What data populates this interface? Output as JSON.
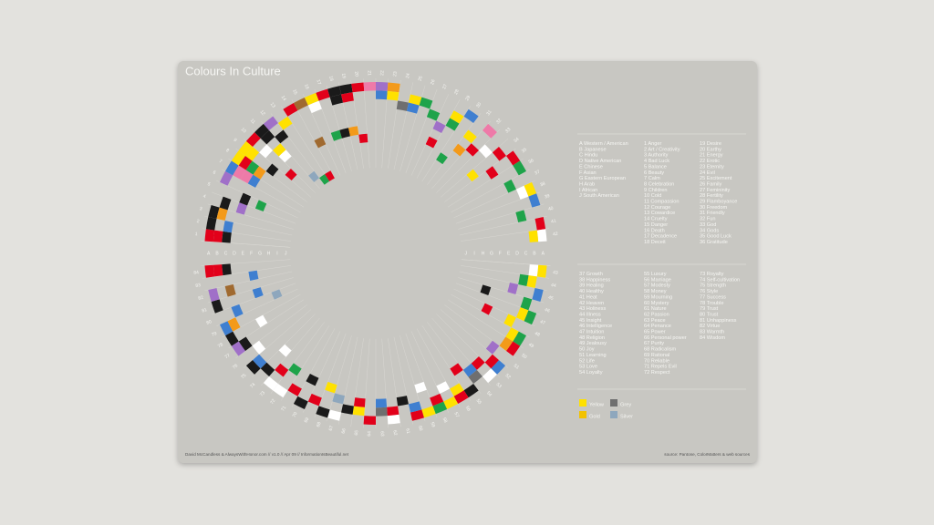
{
  "title": "Colours In Culture",
  "cultures": [
    {
      "letter": "A",
      "name": "Western / American"
    },
    {
      "letter": "B",
      "name": "Japanese"
    },
    {
      "letter": "C",
      "name": "Hindu"
    },
    {
      "letter": "D",
      "name": "Native American"
    },
    {
      "letter": "E",
      "name": "Chinese"
    },
    {
      "letter": "F",
      "name": "Asian"
    },
    {
      "letter": "G",
      "name": "Eastern European"
    },
    {
      "letter": "H",
      "name": "Arab"
    },
    {
      "letter": "I",
      "name": "African"
    },
    {
      "letter": "J",
      "name": "South American"
    }
  ],
  "meanings": [
    {
      "number": 1,
      "label": "Anger"
    },
    {
      "number": 2,
      "label": "Art / Creativity"
    },
    {
      "number": 3,
      "label": "Authority"
    },
    {
      "number": 4,
      "label": "Bad Luck"
    },
    {
      "number": 5,
      "label": "Balance"
    },
    {
      "number": 6,
      "label": "Beauty"
    },
    {
      "number": 7,
      "label": "Calm"
    },
    {
      "number": 8,
      "label": "Celebration"
    },
    {
      "number": 9,
      "label": "Children"
    },
    {
      "number": 10,
      "label": "Cold"
    },
    {
      "number": 11,
      "label": "Compassion"
    },
    {
      "number": 12,
      "label": "Courage"
    },
    {
      "number": 13,
      "label": "Cowardice"
    },
    {
      "number": 14,
      "label": "Cruelty"
    },
    {
      "number": 15,
      "label": "Danger"
    },
    {
      "number": 16,
      "label": "Death"
    },
    {
      "number": 17,
      "label": "Decadence"
    },
    {
      "number": 18,
      "label": "Deceit"
    },
    {
      "number": 19,
      "label": "Desire"
    },
    {
      "number": 20,
      "label": "Earthy"
    },
    {
      "number": 21,
      "label": "Energy"
    },
    {
      "number": 22,
      "label": "Erotic"
    },
    {
      "number": 23,
      "label": "Eternity"
    },
    {
      "number": 24,
      "label": "Evil"
    },
    {
      "number": 25,
      "label": "Excitement"
    },
    {
      "number": 26,
      "label": "Family"
    },
    {
      "number": 27,
      "label": "Femininity"
    },
    {
      "number": 28,
      "label": "Fertility"
    },
    {
      "number": 29,
      "label": "Flamboyance"
    },
    {
      "number": 30,
      "label": "Freedom"
    },
    {
      "number": 31,
      "label": "Friendly"
    },
    {
      "number": 32,
      "label": "Fun"
    },
    {
      "number": 33,
      "label": "God"
    },
    {
      "number": 34,
      "label": "Gods"
    },
    {
      "number": 35,
      "label": "Good Luck"
    },
    {
      "number": 36,
      "label": "Gratitude"
    },
    {
      "number": 37,
      "label": "Growth"
    },
    {
      "number": 38,
      "label": "Happiness"
    },
    {
      "number": 39,
      "label": "Healing"
    },
    {
      "number": 40,
      "label": "Healthy"
    },
    {
      "number": 41,
      "label": "Heat"
    },
    {
      "number": 42,
      "label": "Heaven"
    },
    {
      "number": 43,
      "label": "Holiness"
    },
    {
      "number": 44,
      "label": "Illness"
    },
    {
      "number": 45,
      "label": "Insight"
    },
    {
      "number": 46,
      "label": "Intelligence"
    },
    {
      "number": 47,
      "label": "Intuition"
    },
    {
      "number": 48,
      "label": "Religion"
    },
    {
      "number": 49,
      "label": "Jealousy"
    },
    {
      "number": 50,
      "label": "Joy"
    },
    {
      "number": 51,
      "label": "Learning"
    },
    {
      "number": 52,
      "label": "Life"
    },
    {
      "number": 53,
      "label": "Love"
    },
    {
      "number": 54,
      "label": "Loyalty"
    },
    {
      "number": 55,
      "label": "Luxury"
    },
    {
      "number": 56,
      "label": "Marriage"
    },
    {
      "number": 57,
      "label": "Modesty"
    },
    {
      "number": 58,
      "label": "Money"
    },
    {
      "number": 59,
      "label": "Mourning"
    },
    {
      "number": 60,
      "label": "Mystery"
    },
    {
      "number": 61,
      "label": "Nature"
    },
    {
      "number": 62,
      "label": "Passion"
    },
    {
      "number": 63,
      "label": "Peace"
    },
    {
      "number": 64,
      "label": "Penance"
    },
    {
      "number": 65,
      "label": "Power"
    },
    {
      "number": 66,
      "label": "Personal power"
    },
    {
      "number": 67,
      "label": "Purity"
    },
    {
      "number": 68,
      "label": "Radicalism"
    },
    {
      "number": 69,
      "label": "Rational"
    },
    {
      "number": 70,
      "label": "Reliable"
    },
    {
      "number": 71,
      "label": "Repels Evil"
    },
    {
      "number": 72,
      "label": "Respect"
    },
    {
      "number": 73,
      "label": "Royalty"
    },
    {
      "number": 74,
      "label": "Self-cultivation"
    },
    {
      "number": 75,
      "label": "Strength"
    },
    {
      "number": 76,
      "label": "Style"
    },
    {
      "number": 77,
      "label": "Success"
    },
    {
      "number": 78,
      "label": "Trouble"
    },
    {
      "number": 79,
      "label": "Trust"
    },
    {
      "number": 80,
      "label": "Trust"
    },
    {
      "number": 81,
      "label": "Unhappiness"
    },
    {
      "number": 82,
      "label": "Virtue"
    },
    {
      "number": 83,
      "label": "Warmth"
    },
    {
      "number": 84,
      "label": "Wisdom"
    }
  ],
  "colours": [
    {
      "name": "Yellow",
      "color": "#ffe100"
    },
    {
      "name": "Gold",
      "color": "#f2c200"
    },
    {
      "name": "Grey",
      "color": "#6f6f6f"
    },
    {
      "name": "Silver",
      "color": "#8ea7bd"
    }
  ],
  "cells": [
    [
      1,
      0,
      "#e2001a"
    ],
    [
      1,
      1,
      "#e2001a"
    ],
    [
      1,
      2,
      "#1a1a1a"
    ],
    [
      2,
      0,
      "#1a1a1a"
    ],
    [
      2,
      2,
      "#3f7fd0"
    ],
    [
      3,
      0,
      "#1a1a1a"
    ],
    [
      3,
      1,
      "#f39a1a"
    ],
    [
      4,
      1,
      "#1a1a1a"
    ],
    [
      4,
      3,
      "#a070c8"
    ],
    [
      5,
      3,
      "#1a1a1a"
    ],
    [
      5,
      5,
      "#1ea34a"
    ],
    [
      6,
      0,
      "#a070c8"
    ],
    [
      7,
      0,
      "#3f7fd0"
    ],
    [
      7,
      1,
      "#ee7aa8"
    ],
    [
      7,
      2,
      "#ee7aa8"
    ],
    [
      7,
      3,
      "#3f7fd0"
    ],
    [
      8,
      0,
      "#ffe100"
    ],
    [
      8,
      1,
      "#e2001a"
    ],
    [
      8,
      2,
      "#1ea34a"
    ],
    [
      8,
      3,
      "#f39a1a"
    ],
    [
      9,
      0,
      "#ffe100"
    ],
    [
      9,
      1,
      "#ffe100"
    ],
    [
      9,
      4,
      "#1a1a1a"
    ],
    [
      10,
      0,
      "#e2001a"
    ],
    [
      10,
      2,
      "#ffffff"
    ],
    [
      10,
      6,
      "#e2001a"
    ],
    [
      11,
      0,
      "#1a1a1a"
    ],
    [
      11,
      1,
      "#1a1a1a"
    ],
    [
      11,
      3,
      "#ffe100"
    ],
    [
      11,
      4,
      "#ffffff"
    ],
    [
      12,
      0,
      "#a070c8"
    ],
    [
      12,
      2,
      "#1a1a1a"
    ],
    [
      12,
      8,
      "#8ea7bd"
    ],
    [
      13,
      1,
      "#ffe100"
    ],
    [
      13,
      9,
      "#1ea34a"
    ],
    [
      14,
      0,
      "#e2001a"
    ],
    [
      14,
      9,
      "#e2001a"
    ],
    [
      15,
      0,
      "#a06a30"
    ],
    [
      15,
      5,
      "#a06a30"
    ],
    [
      16,
      0,
      "#ffe100"
    ],
    [
      16,
      1,
      "#ffffff"
    ],
    [
      17,
      0,
      "#e2001a"
    ],
    [
      17,
      5,
      "#1ea34a"
    ],
    [
      18,
      0,
      "#1a1a1a"
    ],
    [
      18,
      1,
      "#1a1a1a"
    ],
    [
      18,
      5,
      "#1a1a1a"
    ],
    [
      19,
      0,
      "#1a1a1a"
    ],
    [
      19,
      1,
      "#e2001a"
    ],
    [
      19,
      5,
      "#f39a1a"
    ],
    [
      20,
      0,
      "#e2001a"
    ],
    [
      20,
      6,
      "#e2001a"
    ],
    [
      21,
      0,
      "#ee7aa8"
    ],
    [
      22,
      0,
      "#a070c8"
    ],
    [
      22,
      1,
      "#3f7fd0"
    ],
    [
      23,
      0,
      "#f39a1a"
    ],
    [
      23,
      1,
      "#ffe100"
    ],
    [
      24,
      2,
      "#6f6f6f"
    ],
    [
      25,
      1,
      "#ffe100"
    ],
    [
      25,
      2,
      "#3f7fd0"
    ],
    [
      26,
      1,
      "#1ea34a"
    ],
    [
      27,
      2,
      "#1ea34a"
    ],
    [
      28,
      3,
      "#a070c8"
    ],
    [
      28,
      5,
      "#e2001a"
    ],
    [
      29,
      1,
      "#ffe100"
    ],
    [
      29,
      2,
      "#1ea34a"
    ],
    [
      30,
      0,
      "#3f7fd0"
    ],
    [
      30,
      6,
      "#1ea34a"
    ],
    [
      31,
      2,
      "#ffe100"
    ],
    [
      31,
      4,
      "#f39a1a"
    ],
    [
      32,
      0,
      "#ee7aa8"
    ],
    [
      32,
      3,
      "#e2001a"
    ],
    [
      33,
      2,
      "#ffffff"
    ],
    [
      34,
      1,
      "#e2001a"
    ],
    [
      34,
      5,
      "#ffe100"
    ],
    [
      35,
      0,
      "#e2001a"
    ],
    [
      35,
      3,
      "#e2001a"
    ],
    [
      36,
      0,
      "#1ea34a"
    ],
    [
      37,
      2,
      "#1ea34a"
    ],
    [
      38,
      0,
      "#ffe100"
    ],
    [
      38,
      1,
      "#ffffff"
    ],
    [
      39,
      0,
      "#3f7fd0"
    ],
    [
      40,
      2,
      "#1ea34a"
    ],
    [
      41,
      0,
      "#e2001a"
    ],
    [
      42,
      0,
      "#ffffff"
    ],
    [
      42,
      1,
      "#ffe100"
    ],
    [
      43,
      0,
      "#ffe100"
    ],
    [
      43,
      1,
      "#ffffff"
    ],
    [
      44,
      1,
      "#ffe100"
    ],
    [
      44,
      2,
      "#1ea34a"
    ],
    [
      45,
      0,
      "#3f7fd0"
    ],
    [
      45,
      3,
      "#a070c8"
    ],
    [
      46,
      1,
      "#1ea34a"
    ],
    [
      46,
      6,
      "#1a1a1a"
    ],
    [
      47,
      0,
      "#1ea34a"
    ],
    [
      47,
      1,
      "#ffe100"
    ],
    [
      48,
      2,
      "#ffe100"
    ],
    [
      48,
      5,
      "#e2001a"
    ],
    [
      49,
      0,
      "#1ea34a"
    ],
    [
      49,
      1,
      "#ffe100"
    ],
    [
      50,
      0,
      "#e2001a"
    ],
    [
      50,
      1,
      "#f39a1a"
    ],
    [
      51,
      2,
      "#a070c8"
    ],
    [
      52,
      0,
      "#3f7fd0"
    ],
    [
      52,
      1,
      "#e2001a"
    ],
    [
      53,
      0,
      "#ffffff"
    ],
    [
      53,
      2,
      "#e2001a"
    ],
    [
      54,
      1,
      "#6f6f6f"
    ],
    [
      54,
      2,
      "#3f7fd0"
    ],
    [
      55,
      0,
      "#1a1a1a"
    ],
    [
      55,
      3,
      "#e2001a"
    ],
    [
      56,
      0,
      "#e2001a"
    ],
    [
      56,
      1,
      "#ffe100"
    ],
    [
      57,
      0,
      "#ffe100"
    ],
    [
      57,
      2,
      "#ffffff"
    ],
    [
      58,
      0,
      "#1ea34a"
    ],
    [
      58,
      1,
      "#e2001a"
    ],
    [
      59,
      0,
      "#ffe100"
    ],
    [
      59,
      3,
      "#ffffff"
    ],
    [
      60,
      0,
      "#e2001a"
    ],
    [
      60,
      1,
      "#3f7fd0"
    ],
    [
      61,
      2,
      "#1a1a1a"
    ],
    [
      62,
      0,
      "#ffffff"
    ],
    [
      62,
      1,
      "#e2001a"
    ],
    [
      63,
      1,
      "#6f6f6f"
    ],
    [
      63,
      2,
      "#3f7fd0"
    ],
    [
      64,
      0,
      "#e2001a"
    ],
    [
      65,
      1,
      "#ffe100"
    ],
    [
      65,
      2,
      "#e2001a"
    ],
    [
      66,
      1,
      "#1a1a1a"
    ],
    [
      67,
      0,
      "#ffffff"
    ],
    [
      67,
      2,
      "#8ea7bd"
    ],
    [
      68,
      0,
      "#1a1a1a"
    ],
    [
      68,
      3,
      "#ffe100"
    ],
    [
      69,
      1,
      "#e2001a"
    ],
    [
      70,
      0,
      "#1a1a1a"
    ],
    [
      70,
      3,
      "#1a1a1a"
    ],
    [
      71,
      1,
      "#e2001a"
    ],
    [
      72,
      0,
      "#ffffff"
    ],
    [
      72,
      3,
      "#1ea34a"
    ],
    [
      73,
      0,
      "#ffffff"
    ],
    [
      73,
      2,
      "#e2001a"
    ],
    [
      74,
      1,
      "#1a1a1a"
    ],
    [
      74,
      4,
      "#ffffff"
    ],
    [
      75,
      0,
      "#1a1a1a"
    ],
    [
      75,
      1,
      "#3f7fd0"
    ],
    [
      76,
      2,
      "#ffffff"
    ],
    [
      77,
      0,
      "#a070c8"
    ],
    [
      77,
      1,
      "#1a1a1a"
    ],
    [
      78,
      0,
      "#1a1a1a"
    ],
    [
      78,
      4,
      "#ffffff"
    ],
    [
      79,
      0,
      "#3f7fd0"
    ],
    [
      79,
      1,
      "#f39a1a"
    ],
    [
      80,
      2,
      "#3f7fd0"
    ],
    [
      80,
      7,
      "#8ea7bd"
    ],
    [
      81,
      0,
      "#1a1a1a"
    ],
    [
      81,
      5,
      "#3f7fd0"
    ],
    [
      82,
      0,
      "#a070c8"
    ],
    [
      82,
      2,
      "#a06a30"
    ],
    [
      83,
      5,
      "#3f7fd0"
    ],
    [
      84,
      0,
      "#e2001a"
    ],
    [
      84,
      1,
      "#e2001a"
    ],
    [
      84,
      2,
      "#1a1a1a"
    ]
  ],
  "footer_left": "David McCandless & AlwaysWithHonor.com // v1.0 // Apr 09 // InformationIsBeautiful.net",
  "footer_right": "source: Pantone, ColorMatters & web sources"
}
